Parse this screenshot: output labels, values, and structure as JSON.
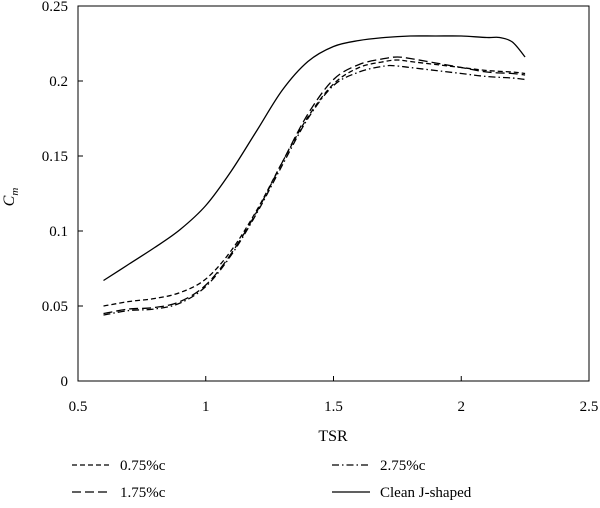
{
  "chart_data": {
    "type": "line",
    "xlabel": "TSR",
    "ylabel_main": "C",
    "ylabel_sub": "m",
    "xlim": [
      0.5,
      2.5
    ],
    "ylim": [
      0,
      0.25
    ],
    "xticks": [
      "0.5",
      "1",
      "1.5",
      "2",
      "2.5"
    ],
    "yticks": [
      "0",
      "0.05",
      "0.1",
      "0.15",
      "0.2",
      "0.25"
    ],
    "grid": false,
    "legend_position": "bottom",
    "series": [
      {
        "name": "0.75%c",
        "style": "dashed-short",
        "x": [
          0.6,
          0.7,
          0.8,
          0.9,
          1.0,
          1.1,
          1.2,
          1.3,
          1.4,
          1.5,
          1.6,
          1.7,
          1.75,
          1.8,
          1.9,
          2.0,
          2.1,
          2.2,
          2.25
        ],
        "y": [
          0.05,
          0.053,
          0.055,
          0.059,
          0.068,
          0.087,
          0.114,
          0.146,
          0.176,
          0.198,
          0.209,
          0.213,
          0.214,
          0.213,
          0.211,
          0.209,
          0.207,
          0.206,
          0.205
        ]
      },
      {
        "name": "1.75%c",
        "style": "dashed-long",
        "x": [
          0.6,
          0.7,
          0.8,
          0.9,
          1.0,
          1.1,
          1.2,
          1.3,
          1.4,
          1.5,
          1.6,
          1.7,
          1.75,
          1.8,
          1.9,
          2.0,
          2.1,
          2.2,
          2.25
        ],
        "y": [
          0.045,
          0.048,
          0.049,
          0.053,
          0.064,
          0.085,
          0.113,
          0.146,
          0.178,
          0.201,
          0.211,
          0.215,
          0.216,
          0.215,
          0.212,
          0.209,
          0.206,
          0.205,
          0.204
        ]
      },
      {
        "name": "2.75%c",
        "style": "dash-dot",
        "x": [
          0.6,
          0.7,
          0.8,
          0.9,
          1.0,
          1.1,
          1.2,
          1.3,
          1.4,
          1.5,
          1.6,
          1.7,
          1.75,
          1.8,
          1.9,
          2.0,
          2.1,
          2.2,
          2.25
        ],
        "y": [
          0.044,
          0.047,
          0.048,
          0.052,
          0.063,
          0.084,
          0.112,
          0.144,
          0.175,
          0.197,
          0.206,
          0.21,
          0.21,
          0.209,
          0.207,
          0.205,
          0.203,
          0.202,
          0.201
        ]
      },
      {
        "name": "Clean J-shaped",
        "style": "solid",
        "x": [
          0.6,
          0.7,
          0.8,
          0.9,
          1.0,
          1.1,
          1.2,
          1.3,
          1.4,
          1.5,
          1.6,
          1.7,
          1.8,
          1.9,
          2.0,
          2.1,
          2.15,
          2.2,
          2.25
        ],
        "y": [
          0.067,
          0.078,
          0.089,
          0.101,
          0.117,
          0.14,
          0.167,
          0.194,
          0.213,
          0.223,
          0.227,
          0.229,
          0.23,
          0.23,
          0.23,
          0.229,
          0.229,
          0.226,
          0.216
        ]
      }
    ]
  }
}
